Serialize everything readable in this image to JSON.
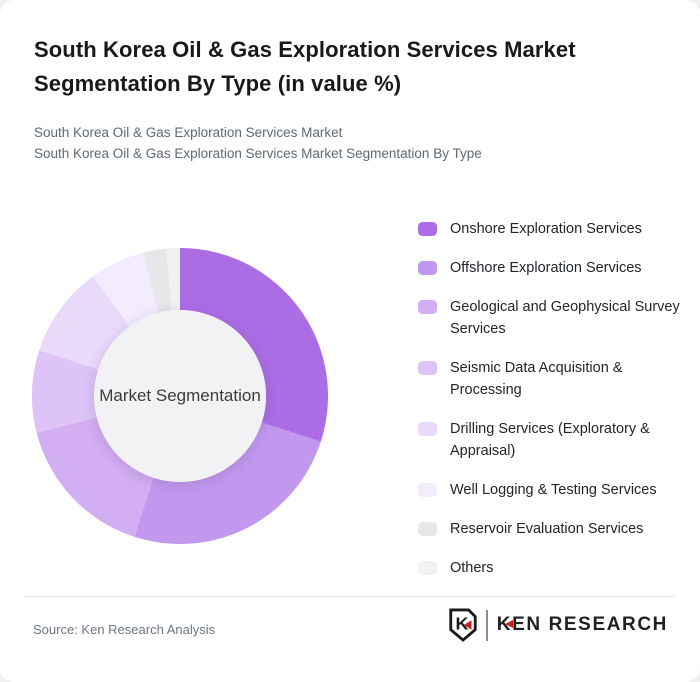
{
  "page": {
    "background": "#eef0f1",
    "card_background": "#ffffff"
  },
  "header": {
    "title": "South Korea Oil & Gas Exploration Services Market Segmentation By Type (in value %)",
    "subtitle1": "South Korea Oil & Gas Exploration Services Market",
    "subtitle2": "South Korea Oil & Gas Exploration Services Market Segmentation By Type"
  },
  "chart_data": {
    "type": "pie",
    "style": "donut",
    "title": "South Korea Oil & Gas Exploration Services Market Segmentation By Type (in value %)",
    "unit": "value %",
    "center_label": "Market Segmentation",
    "legend_position": "right",
    "start_angle_deg": 0,
    "direction": "clockwise",
    "inner_circle_color": "#f2f1f3",
    "segments": [
      {
        "label": "Onshore Exploration Services",
        "value": 30,
        "color": "#ab6ce4"
      },
      {
        "label": "Offshore Exploration Services",
        "value": 25,
        "color": "#c298ee"
      },
      {
        "label": "Geological and Geophysical Survey Services",
        "value": 16,
        "color": "#d2aef2"
      },
      {
        "label": "Seismic Data Acquisition & Processing",
        "value": 9,
        "color": "#ddc3f6"
      },
      {
        "label": "Drilling Services (Exploratory & Appraisal)",
        "value": 10,
        "color": "#e9d9fa"
      },
      {
        "label": "Well Logging & Testing Services",
        "value": 6,
        "color": "#f3ecfc"
      },
      {
        "label": "Reservoir Evaluation Services",
        "value": 2.5,
        "color": "#e7e6e9"
      },
      {
        "label": "Others",
        "value": 1.5,
        "color": "#f1f0f2"
      }
    ]
  },
  "footer": {
    "source": "Source: Ken Research Analysis",
    "logo": {
      "text": "KEN RESEARCH",
      "monogram": "K",
      "accent_color": "#c42127",
      "text_color": "#231f20"
    }
  }
}
